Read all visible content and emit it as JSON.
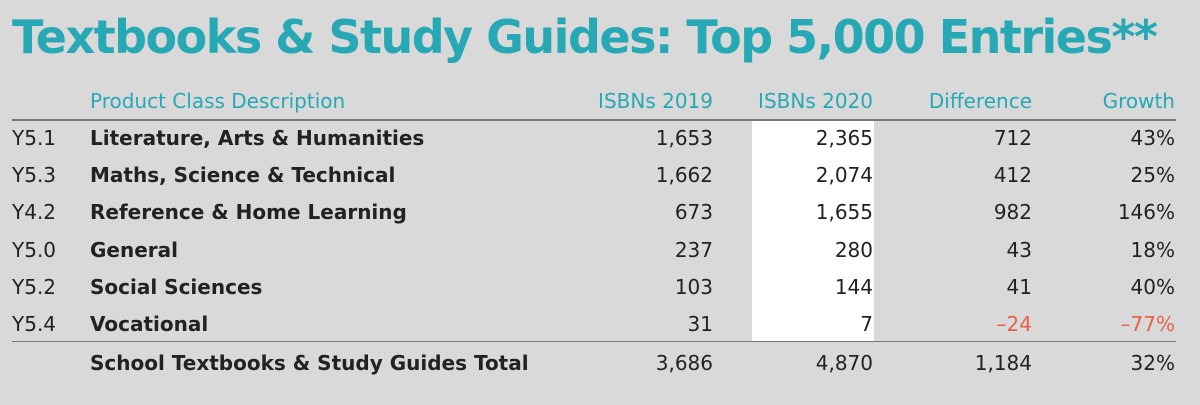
{
  "title": "Textbooks & Study Guides: Top 5,000 Entries**",
  "colors": {
    "accent": "#26a9b5",
    "negative": "#e8604a",
    "background": "#d9d9d9"
  },
  "chart_data": {
    "type": "table",
    "title": "Textbooks & Study Guides: Top 5,000 Entries**",
    "columns": [
      "Product Class Description",
      "ISBNs 2019",
      "ISBNs 2020",
      "Difference",
      "Growth"
    ],
    "rows": [
      {
        "code": "Y5.1",
        "desc": "Literature, Arts & Humanities",
        "y2019": "1,653",
        "y2020": "2,365",
        "diff": "712",
        "growth": "43%",
        "neg": false
      },
      {
        "code": "Y5.3",
        "desc": "Maths, Science & Technical",
        "y2019": "1,662",
        "y2020": "2,074",
        "diff": "412",
        "growth": "25%",
        "neg": false
      },
      {
        "code": "Y4.2",
        "desc": "Reference & Home Learning",
        "y2019": "673",
        "y2020": "1,655",
        "diff": "982",
        "growth": "146%",
        "neg": false
      },
      {
        "code": "Y5.0",
        "desc": "General",
        "y2019": "237",
        "y2020": "280",
        "diff": "43",
        "growth": "18%",
        "neg": false
      },
      {
        "code": "Y5.2",
        "desc": "Social Sciences",
        "y2019": "103",
        "y2020": "144",
        "diff": "41",
        "growth": "40%",
        "neg": false
      },
      {
        "code": "Y5.4",
        "desc": "Vocational",
        "y2019": "31",
        "y2020": "7",
        "diff": "–24",
        "growth": "–77%",
        "neg": true
      }
    ],
    "total": {
      "desc": "School Textbooks & Study Guides Total",
      "y2019": "3,686",
      "y2020": "4,870",
      "diff": "1,184",
      "growth": "32%"
    }
  }
}
